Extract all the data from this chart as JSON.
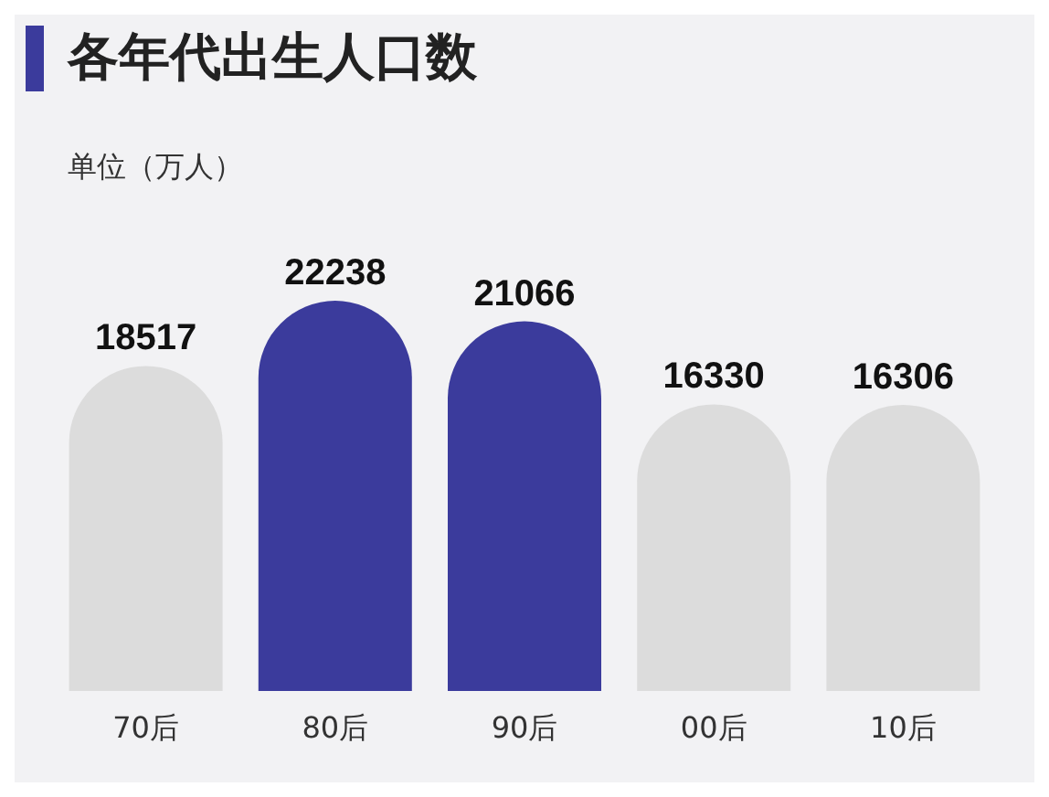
{
  "chart_data": {
    "type": "bar",
    "title": "各年代出生人口数",
    "subtitle": "单位（万人）",
    "categories": [
      "70后",
      "80后",
      "90后",
      "00后",
      "10后"
    ],
    "values": [
      18517,
      22238,
      21066,
      16330,
      16306
    ],
    "colors": [
      "#dcdcdc",
      "#3b3b9c",
      "#3b3b9c",
      "#dcdcdc",
      "#dcdcdc"
    ],
    "data_labels": true,
    "grid": false
  }
}
